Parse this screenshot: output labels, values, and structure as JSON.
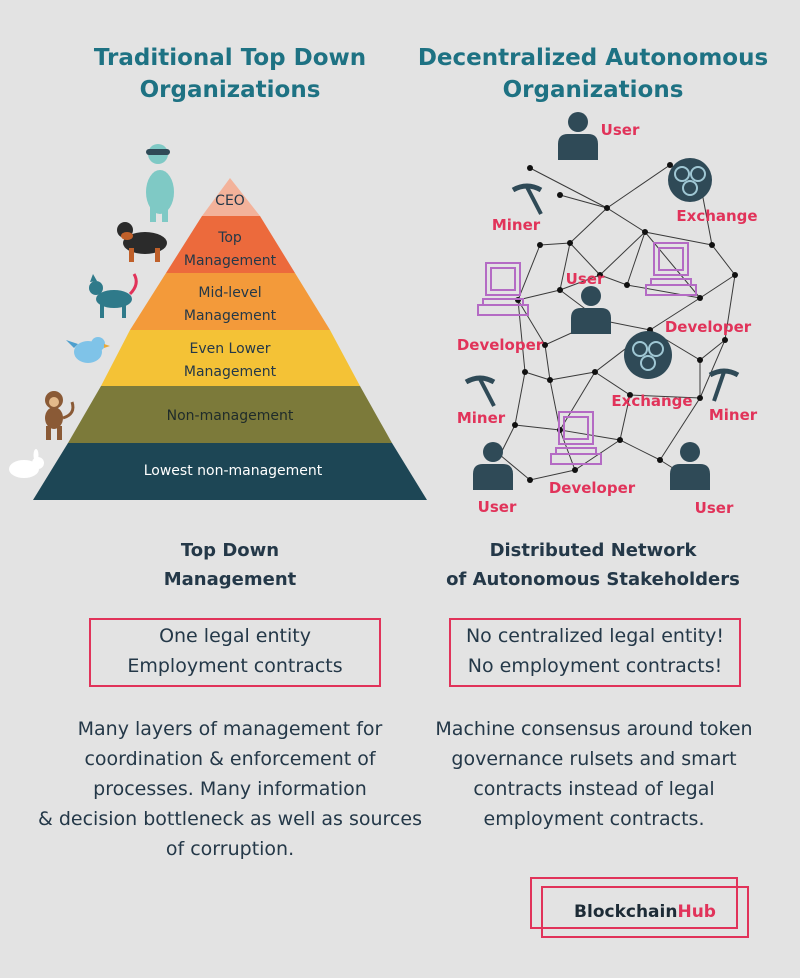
{
  "left": {
    "heading": [
      "Traditional Top Down",
      "Organizations"
    ],
    "pyramid_tiers": [
      {
        "lines": [
          "CEO"
        ],
        "color": "#f3b29a",
        "text_color": "#243848"
      },
      {
        "lines": [
          "Top",
          "Management"
        ],
        "color": "#ec6a3c",
        "text_color": "#243848"
      },
      {
        "lines": [
          "Mid-level",
          "Management"
        ],
        "color": "#f39a3a",
        "text_color": "#243848"
      },
      {
        "lines": [
          "Even Lower",
          "Management"
        ],
        "color": "#f4c236",
        "text_color": "#243848"
      },
      {
        "lines": [
          "Non-management"
        ],
        "color": "#7c7a3a",
        "text_color": "#1f2b2a"
      },
      {
        "lines": [
          "Lowest non-management"
        ],
        "color": "#1d4655",
        "text_color": "#ffffff"
      }
    ],
    "animal_icons": [
      "dog-icon",
      "rottweiler-icon",
      "cat-icon",
      "bird-icon",
      "monkey-icon",
      "rabbit-icon"
    ],
    "subheading": [
      "Top Down",
      "Management"
    ],
    "box_lines": [
      "One legal entity",
      "Employment contracts"
    ],
    "description": [
      "Many layers of management for",
      "coordination & enforcement of",
      "processes. Many information",
      "& decision bottleneck as well as sources",
      "of corruption."
    ]
  },
  "right": {
    "heading": [
      "Decentralized Autonomous",
      "Organizations"
    ],
    "network_labels": {
      "user": "User",
      "miner": "Miner",
      "exchange": "Exchange",
      "developer": "Developer"
    },
    "subheading": [
      "Distributed Network",
      "of Autonomous Stakeholders"
    ],
    "box_lines": [
      "No centralized legal entity!",
      "No employment contracts!"
    ],
    "description": [
      "Machine consensus around token",
      "governance rulsets and smart",
      "contracts instead of legal",
      "employment contracts."
    ]
  },
  "logo": {
    "part1": "Blockchain",
    "part2": "Hub"
  },
  "colors": {
    "accent": "#e1335a",
    "heading": "#1e7283",
    "icon": "#2f4a57",
    "developer": "#b46bc4",
    "node": "#1b1b1b"
  }
}
